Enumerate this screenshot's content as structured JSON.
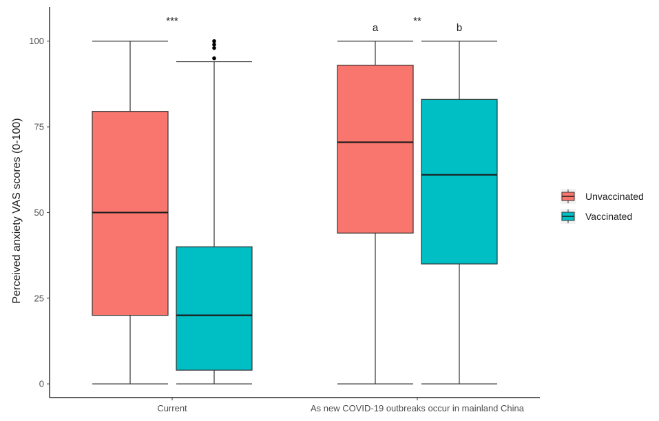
{
  "chart_data": {
    "type": "boxplot",
    "ylabel": "Perceived anxiety VAS scores (0-100)",
    "xlabel": "",
    "ylim": [
      -4,
      110
    ],
    "y_ticks": [
      0,
      25,
      50,
      75,
      100
    ],
    "grid": false,
    "legend_position": "right",
    "categories": [
      "Current",
      "As new COVID-19 outbreaks occur in mainland China"
    ],
    "series": [
      {
        "name": "Unvaccinated",
        "color": "#F8766D",
        "boxes": [
          {
            "min": 0,
            "q1": 20,
            "median": 50,
            "q3": 79.5,
            "max": 100,
            "outliers": []
          },
          {
            "min": 0,
            "q1": 44,
            "median": 70.5,
            "q3": 93,
            "max": 100,
            "outliers": []
          }
        ]
      },
      {
        "name": "Vaccinated",
        "color": "#00BFC4",
        "boxes": [
          {
            "min": 0,
            "q1": 4,
            "median": 20,
            "q3": 40,
            "max": 94,
            "outliers": [
              95,
              98,
              99,
              100
            ]
          },
          {
            "min": 0,
            "q1": 35,
            "median": 61,
            "q3": 83,
            "max": 100,
            "outliers": []
          }
        ]
      }
    ],
    "annotations": [
      {
        "text": "***",
        "category": 0,
        "position": "between",
        "y": 106
      },
      {
        "text": "a",
        "category": 1,
        "series": 0,
        "y": 104
      },
      {
        "text": "**",
        "category": 1,
        "position": "between",
        "y": 106
      },
      {
        "text": "b",
        "category": 1,
        "series": 1,
        "y": 104
      }
    ]
  }
}
